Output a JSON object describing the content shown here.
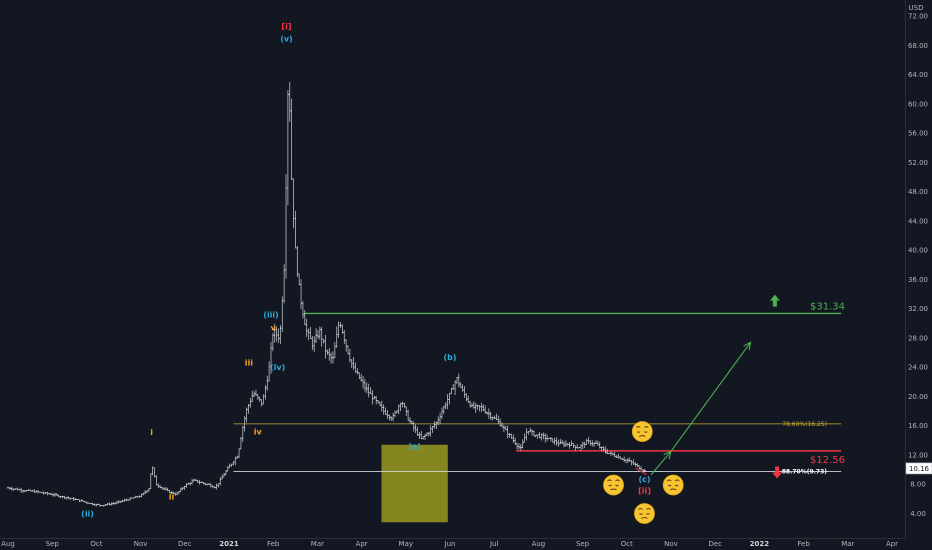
{
  "currency": "USD",
  "colors": {
    "background": "#131722",
    "candle": "#d1d4dc",
    "green": "#4caf50",
    "red": "#f23645",
    "fib": "#c9b037",
    "support": "#d1d4dc",
    "box": "#9a9a1e",
    "wave_blue": "#2aa8d8",
    "wave_orange": "#f5a623",
    "wave_red": "#f23645"
  },
  "chart_data": {
    "type": "ohlc",
    "symbol_quote": "USD",
    "y_axis": {
      "range": [
        2,
        72
      ],
      "ticks": [
        "72.00",
        "68.00",
        "64.00",
        "60.00",
        "56.00",
        "52.00",
        "48.00",
        "44.00",
        "40.00",
        "36.00",
        "32.00",
        "28.00",
        "24.00",
        "20.00",
        "16.00",
        "12.00",
        "8.00",
        "4.00"
      ],
      "last_price_label": "10.16"
    },
    "x_axis": {
      "ticks": [
        {
          "label": "Aug",
          "bold": false
        },
        {
          "label": "Sep",
          "bold": false
        },
        {
          "label": "Oct",
          "bold": false
        },
        {
          "label": "Nov",
          "bold": false
        },
        {
          "label": "Dec",
          "bold": false
        },
        {
          "label": "2021",
          "bold": true
        },
        {
          "label": "Feb",
          "bold": false
        },
        {
          "label": "Mar",
          "bold": false
        },
        {
          "label": "Apr",
          "bold": false
        },
        {
          "label": "May",
          "bold": false
        },
        {
          "label": "Jun",
          "bold": false
        },
        {
          "label": "Jul",
          "bold": false
        },
        {
          "label": "Aug",
          "bold": false
        },
        {
          "label": "Sep",
          "bold": false
        },
        {
          "label": "Oct",
          "bold": false
        },
        {
          "label": "Nov",
          "bold": false
        },
        {
          "label": "Dec",
          "bold": false
        },
        {
          "label": "2022",
          "bold": true
        },
        {
          "label": "Feb",
          "bold": false
        },
        {
          "label": "Mar",
          "bold": false
        },
        {
          "label": "Apr",
          "bold": false
        }
      ]
    },
    "price_path": [
      [
        0,
        7.5
      ],
      [
        0.3,
        7.2
      ],
      [
        0.6,
        7.0
      ],
      [
        1.0,
        6.6
      ],
      [
        1.3,
        6.2
      ],
      [
        1.6,
        5.8
      ],
      [
        1.9,
        5.3
      ],
      [
        2.1,
        5.1
      ],
      [
        2.4,
        5.4
      ],
      [
        2.7,
        5.9
      ],
      [
        3.0,
        6.4
      ],
      [
        3.2,
        7.5
      ],
      [
        3.25,
        10.8
      ],
      [
        3.35,
        8.0
      ],
      [
        3.6,
        7.1
      ],
      [
        3.8,
        6.6
      ],
      [
        4.0,
        7.8
      ],
      [
        4.2,
        8.5
      ],
      [
        4.5,
        8.0
      ],
      [
        4.7,
        7.6
      ],
      [
        4.9,
        9.5
      ],
      [
        5.1,
        11.2
      ],
      [
        5.2,
        12.0
      ],
      [
        5.3,
        15.5
      ],
      [
        5.4,
        18.2
      ],
      [
        5.55,
        20.5
      ],
      [
        5.75,
        19.0
      ],
      [
        5.9,
        23.5
      ],
      [
        6.0,
        29.0
      ],
      [
        6.15,
        28.0
      ],
      [
        6.25,
        38.0
      ],
      [
        6.3,
        52.0
      ],
      [
        6.35,
        67.0
      ],
      [
        6.4,
        52.0
      ],
      [
        6.5,
        40.0
      ],
      [
        6.6,
        34.0
      ],
      [
        6.75,
        29.0
      ],
      [
        6.9,
        27.0
      ],
      [
        7.05,
        29.0
      ],
      [
        7.2,
        26.0
      ],
      [
        7.35,
        25.0
      ],
      [
        7.5,
        30.5
      ],
      [
        7.65,
        27.0
      ],
      [
        7.8,
        24.0
      ],
      [
        7.95,
        22.5
      ],
      [
        8.1,
        21.0
      ],
      [
        8.3,
        19.5
      ],
      [
        8.5,
        18.0
      ],
      [
        8.7,
        17.0
      ],
      [
        8.9,
        19.5
      ],
      [
        9.05,
        17.0
      ],
      [
        9.2,
        15.5
      ],
      [
        9.35,
        14.2
      ],
      [
        9.5,
        15.0
      ],
      [
        9.7,
        16.5
      ],
      [
        9.9,
        19.0
      ],
      [
        10.05,
        21.0
      ],
      [
        10.15,
        22.5
      ],
      [
        10.3,
        20.5
      ],
      [
        10.5,
        18.5
      ],
      [
        10.7,
        18.5
      ],
      [
        10.9,
        17.5
      ],
      [
        11.1,
        16.5
      ],
      [
        11.3,
        15.0
      ],
      [
        11.5,
        13.5
      ],
      [
        11.6,
        12.8
      ],
      [
        11.75,
        15.5
      ],
      [
        11.9,
        14.8
      ],
      [
        12.1,
        14.5
      ],
      [
        12.3,
        14.0
      ],
      [
        12.5,
        13.5
      ],
      [
        12.7,
        13.5
      ],
      [
        12.9,
        13.0
      ],
      [
        13.1,
        13.8
      ],
      [
        13.3,
        13.5
      ],
      [
        13.5,
        12.5
      ],
      [
        13.7,
        12.0
      ],
      [
        13.9,
        11.5
      ],
      [
        14.1,
        11.0
      ],
      [
        14.3,
        10.2
      ],
      [
        14.45,
        9.7
      ]
    ],
    "series": [],
    "levels": [
      {
        "name": "$31.34",
        "value": 31.34,
        "color": "#4caf50",
        "x_from": 6.7,
        "x_to": 18.85
      },
      {
        "name": "$12.56",
        "value": 12.56,
        "color": "#f23645",
        "x_from": 11.5,
        "x_to": 18.85
      },
      {
        "name": "78.60%(16.25)",
        "value": 16.25,
        "color": "#c9b037",
        "x_from": 5.1,
        "x_to": 18.85
      },
      {
        "name": "88.70%(9.73)",
        "value": 9.73,
        "color": "#d1d4dc",
        "x_from": 5.1,
        "x_to": 18.85
      }
    ],
    "zone": {
      "x_from": 8.45,
      "x_to": 9.95,
      "y_from": 2.8,
      "y_to": 13.4
    },
    "projection": [
      [
        14.55,
        9.3
      ],
      [
        15.0,
        12.5
      ],
      [
        16.8,
        27.4
      ]
    ],
    "wave_labels": [
      {
        "text": "[i]",
        "x": 6.3,
        "y": 70.2,
        "color": "#f23645"
      },
      {
        "text": "(v)",
        "x": 6.3,
        "y": 68.5,
        "color": "#2aa8d8"
      },
      {
        "text": "(iii)",
        "x": 5.95,
        "y": 30.8,
        "color": "#2aa8d8"
      },
      {
        "text": "v",
        "x": 6.0,
        "y": 29.0,
        "color": "#f5a623"
      },
      {
        "text": "iii",
        "x": 5.45,
        "y": 24.2,
        "color": "#f5a623"
      },
      {
        "text": "(iv)",
        "x": 6.1,
        "y": 23.6,
        "color": "#2aa8d8"
      },
      {
        "text": "iv",
        "x": 5.65,
        "y": 14.8,
        "color": "#f5a623"
      },
      {
        "text": "i",
        "x": 3.25,
        "y": 14.7,
        "color": "#f5a623"
      },
      {
        "text": "ii",
        "x": 3.7,
        "y": 5.9,
        "color": "#f5a623"
      },
      {
        "text": "(ii)",
        "x": 1.8,
        "y": 3.6,
        "color": "#2aa8d8"
      },
      {
        "text": "(b)",
        "x": 10.0,
        "y": 25.0,
        "color": "#2aa8d8"
      },
      {
        "text": "(a)",
        "x": 9.2,
        "y": 12.8,
        "color": "#2aa8d8"
      },
      {
        "text": "(c)",
        "x": 14.4,
        "y": 8.3,
        "color": "#2aa8d8"
      },
      {
        "text": "[ii]",
        "x": 14.4,
        "y": 6.7,
        "color": "#f23645"
      }
    ],
    "emojis": [
      {
        "x": 14.35,
        "y": 15.2
      },
      {
        "x": 13.7,
        "y": 7.9
      },
      {
        "x": 15.05,
        "y": 7.9
      },
      {
        "x": 14.4,
        "y": 4.0
      }
    ],
    "arrows": [
      {
        "dir": "up",
        "x": 17.35,
        "y": 33.1,
        "color": "#4caf50"
      },
      {
        "dir": "down",
        "x": 17.4,
        "y": 9.6,
        "color": "#f23645"
      }
    ]
  }
}
